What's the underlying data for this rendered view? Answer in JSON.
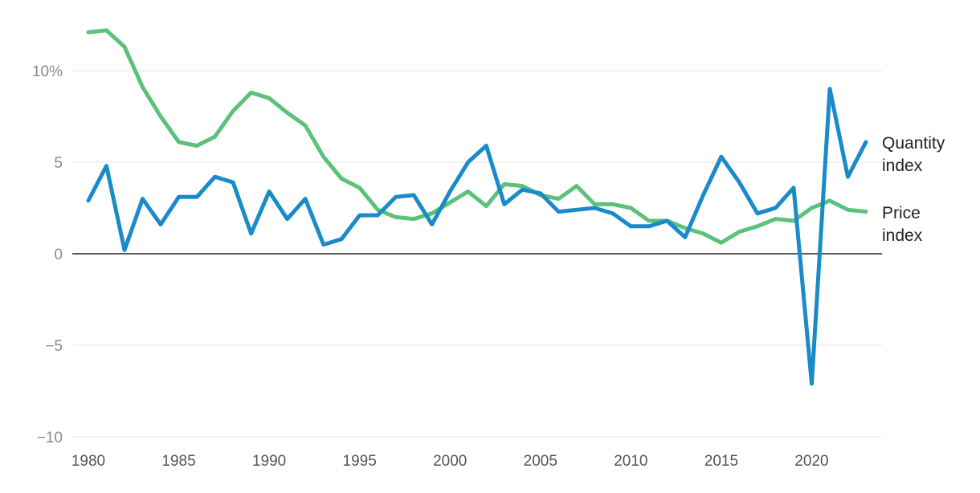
{
  "chart_data": {
    "type": "line",
    "title": "",
    "xlabel": "",
    "ylabel": "",
    "x": [
      1980,
      1981,
      1982,
      1983,
      1984,
      1985,
      1986,
      1987,
      1988,
      1989,
      1990,
      1991,
      1992,
      1993,
      1994,
      1995,
      1996,
      1997,
      1998,
      1999,
      2000,
      2001,
      2002,
      2003,
      2004,
      2005,
      2006,
      2007,
      2008,
      2009,
      2010,
      2011,
      2012,
      2013,
      2014,
      2015,
      2016,
      2017,
      2018,
      2019,
      2020,
      2021,
      2022,
      2023
    ],
    "xlim": [
      1980,
      2023
    ],
    "ylim": [
      -10,
      12
    ],
    "x_ticks": [
      1980,
      1985,
      1990,
      1995,
      2000,
      2005,
      2010,
      2015,
      2020
    ],
    "x_tick_labels": [
      "1980",
      "1985",
      "1990",
      "1995",
      "2000",
      "2005",
      "2010",
      "2015",
      "2020"
    ],
    "y_ticks": [
      10,
      5,
      0,
      -5,
      -10
    ],
    "y_tick_labels": [
      "10%",
      "5",
      "0",
      "−5",
      "−10"
    ],
    "grid": true,
    "series": [
      {
        "name": "Price index",
        "label_lines": [
          "Price",
          "index"
        ],
        "color": "#5cc17a",
        "values": [
          12.1,
          12.2,
          11.3,
          9.1,
          7.5,
          6.1,
          5.9,
          6.4,
          7.8,
          8.8,
          8.5,
          7.7,
          7.0,
          5.3,
          4.1,
          3.6,
          2.4,
          2.0,
          1.9,
          2.2,
          2.8,
          3.4,
          2.6,
          3.8,
          3.7,
          3.2,
          3.0,
          3.7,
          2.7,
          2.7,
          2.5,
          1.8,
          1.8,
          1.4,
          1.1,
          0.6,
          1.2,
          1.5,
          1.9,
          1.8,
          2.5,
          2.9,
          2.4,
          2.3
        ]
      },
      {
        "name": "Quantity index",
        "label_lines": [
          "Quantity",
          "index"
        ],
        "color": "#1a8bc8",
        "values": [
          2.9,
          4.8,
          0.2,
          3.0,
          1.6,
          3.1,
          3.1,
          4.2,
          3.9,
          1.1,
          3.4,
          1.9,
          3.0,
          0.5,
          0.8,
          2.1,
          2.1,
          3.1,
          3.2,
          1.6,
          3.4,
          5.0,
          5.9,
          2.7,
          3.5,
          3.3,
          2.3,
          2.4,
          2.5,
          2.2,
          1.5,
          1.5,
          1.8,
          0.9,
          3.2,
          5.3,
          3.9,
          2.2,
          2.5,
          3.6,
          -7.1,
          9.0,
          4.2,
          6.1
        ]
      }
    ]
  }
}
